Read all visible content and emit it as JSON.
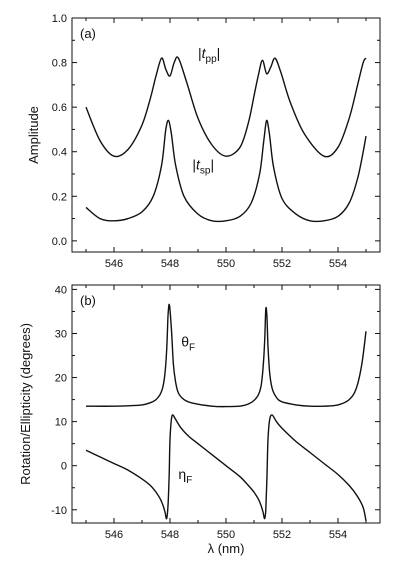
{
  "chart_data": [
    {
      "type": "line",
      "panel_label": "(a)",
      "xlabel": "",
      "ylabel": "Amplitude",
      "xlim": [
        544.5,
        555.5
      ],
      "ylim": [
        -0.05,
        1.0
      ],
      "x_ticks": [
        546,
        548,
        550,
        552,
        554
      ],
      "y_ticks": [
        0.0,
        0.2,
        0.4,
        0.6,
        0.8,
        1.0
      ],
      "x_tick_labels": [
        "546",
        "548",
        "550",
        "552",
        "554"
      ],
      "y_tick_labels": [
        "0.0",
        "0.2",
        "0.4",
        "0.6",
        "0.8",
        "1.0"
      ],
      "annotations": [
        {
          "pre": "|",
          "main": "t",
          "sub": "pp",
          "post": "|",
          "x": 549.0,
          "y": 0.82
        },
        {
          "pre": "|",
          "main": "t",
          "sub": "sp",
          "post": "|",
          "x": 548.8,
          "y": 0.32
        }
      ],
      "series": [
        {
          "key": "tpp",
          "x": [
            545.0,
            545.5,
            546.0,
            546.5,
            547.0,
            547.3,
            547.5,
            547.7,
            547.85,
            548.0,
            548.15,
            548.3,
            548.6,
            549.0,
            549.5,
            550.0,
            550.5,
            550.8,
            551.0,
            551.15,
            551.3,
            551.45,
            551.6,
            551.75,
            551.95,
            552.3,
            552.8,
            553.5,
            554.0,
            554.4,
            554.7,
            554.9,
            555.0
          ],
          "y": [
            0.6,
            0.45,
            0.38,
            0.41,
            0.52,
            0.64,
            0.74,
            0.82,
            0.77,
            0.74,
            0.8,
            0.82,
            0.71,
            0.55,
            0.43,
            0.38,
            0.42,
            0.53,
            0.65,
            0.74,
            0.81,
            0.75,
            0.78,
            0.82,
            0.76,
            0.62,
            0.48,
            0.38,
            0.42,
            0.55,
            0.7,
            0.8,
            0.82
          ]
        },
        {
          "key": "tsp",
          "x": [
            545.0,
            545.5,
            546.0,
            546.5,
            547.0,
            547.4,
            547.7,
            547.85,
            547.95,
            548.05,
            548.2,
            548.5,
            549.0,
            549.5,
            550.0,
            550.5,
            550.9,
            551.2,
            551.35,
            551.45,
            551.55,
            551.7,
            552.0,
            552.5,
            553.0,
            553.5,
            554.0,
            554.4,
            554.7,
            554.9,
            555.0
          ],
          "y": [
            0.15,
            0.1,
            0.09,
            0.1,
            0.13,
            0.2,
            0.34,
            0.5,
            0.54,
            0.48,
            0.34,
            0.2,
            0.12,
            0.09,
            0.09,
            0.11,
            0.17,
            0.3,
            0.45,
            0.54,
            0.48,
            0.33,
            0.19,
            0.12,
            0.09,
            0.09,
            0.11,
            0.17,
            0.28,
            0.4,
            0.47
          ]
        }
      ]
    },
    {
      "type": "line",
      "panel_label": "(b)",
      "xlabel_pre": "λ",
      "xlabel_post": " (nm)",
      "ylabel": "Rotation/Ellipticity (degrees)",
      "xlim": [
        544.5,
        555.5
      ],
      "ylim": [
        -13,
        41
      ],
      "x_ticks": [
        546,
        548,
        550,
        552,
        554
      ],
      "y_ticks": [
        -10,
        0,
        10,
        20,
        30,
        40
      ],
      "x_tick_labels": [
        "546",
        "548",
        "550",
        "552",
        "554"
      ],
      "y_tick_labels": [
        "-10",
        "0",
        "10",
        "20",
        "30",
        "40"
      ],
      "annotations": [
        {
          "main": "θ",
          "sub": "F",
          "x": 548.4,
          "y": 27
        },
        {
          "main": "η",
          "sub": "F",
          "x": 548.3,
          "y": -3
        }
      ],
      "series": [
        {
          "key": "theta",
          "x": [
            545.0,
            546.0,
            546.5,
            547.0,
            547.3,
            547.5,
            547.65,
            547.75,
            547.82,
            547.88,
            547.93,
            547.98,
            548.05,
            548.12,
            548.2,
            548.3,
            548.5,
            548.8,
            549.5,
            550.0,
            550.5,
            550.8,
            551.0,
            551.15,
            551.25,
            551.32,
            551.38,
            551.42,
            551.46,
            551.5,
            551.56,
            551.65,
            551.8,
            552.0,
            552.5,
            553.0,
            553.5,
            554.0,
            554.4,
            554.65,
            554.85,
            555.0
          ],
          "y": [
            13.5,
            13.5,
            13.6,
            13.8,
            14.3,
            15.0,
            16.2,
            18.0,
            21.0,
            26.0,
            34.0,
            36.5,
            31.0,
            23.0,
            19.0,
            16.5,
            15.0,
            14.2,
            13.5,
            13.4,
            13.5,
            14.0,
            14.8,
            16.0,
            18.0,
            22.0,
            28.0,
            35.5,
            34.0,
            27.0,
            21.0,
            17.5,
            15.5,
            14.5,
            13.8,
            13.5,
            13.5,
            13.8,
            15.0,
            17.5,
            23.0,
            30.5
          ]
        },
        {
          "key": "eta",
          "x": [
            545.0,
            545.5,
            546.0,
            546.5,
            547.0,
            547.3,
            547.5,
            547.65,
            547.75,
            547.82,
            547.88,
            547.93,
            547.97,
            548.0,
            548.05,
            548.1,
            548.2,
            548.4,
            548.7,
            549.0,
            549.5,
            550.0,
            550.5,
            550.8,
            551.0,
            551.15,
            551.25,
            551.32,
            551.38,
            551.42,
            551.46,
            551.5,
            551.56,
            551.65,
            551.8,
            552.0,
            552.5,
            553.0,
            553.5,
            554.0,
            554.4,
            554.7,
            554.9,
            555.0
          ],
          "y": [
            3.5,
            2.0,
            0.5,
            -1.0,
            -3.0,
            -4.5,
            -6.0,
            -7.5,
            -9.0,
            -10.5,
            -12.0,
            -9.0,
            -2.0,
            6.0,
            10.5,
            11.5,
            10.5,
            8.5,
            6.5,
            5.0,
            2.5,
            0.0,
            -2.5,
            -4.5,
            -6.0,
            -7.5,
            -9.0,
            -10.5,
            -12.0,
            -10.0,
            -3.0,
            6.0,
            10.5,
            11.5,
            10.0,
            8.5,
            5.5,
            3.0,
            0.5,
            -2.0,
            -4.5,
            -7.0,
            -9.5,
            -12.5
          ]
        }
      ]
    }
  ]
}
